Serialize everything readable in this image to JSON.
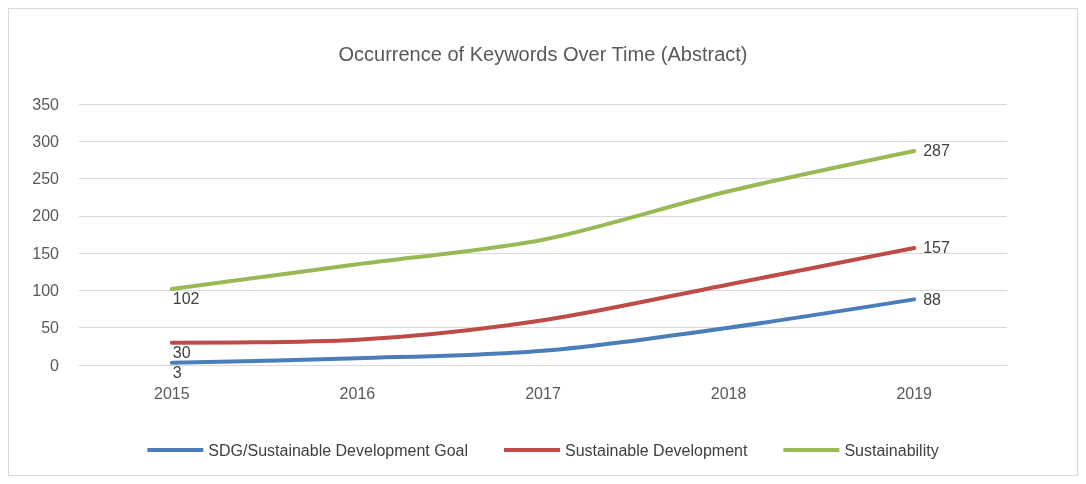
{
  "chart_data": {
    "type": "line",
    "title": "Occurrence of Keywords Over Time (Abstract)",
    "categories": [
      "2015",
      "2016",
      "2017",
      "2018",
      "2019"
    ],
    "series": [
      {
        "name": "SDG/Sustainable Development Goal",
        "color": "#4a7ebb",
        "values": [
          3,
          9,
          19,
          50,
          88
        ],
        "value_labels": [
          "3",
          null,
          null,
          null,
          "88"
        ]
      },
      {
        "name": "Sustainable Development",
        "color": "#be4b48",
        "values": [
          30,
          34,
          60,
          108,
          157
        ],
        "value_labels": [
          "30",
          null,
          null,
          null,
          "157"
        ]
      },
      {
        "name": "Sustainability",
        "color": "#98b954",
        "values": [
          102,
          135,
          168,
          233,
          287
        ],
        "value_labels": [
          "102",
          null,
          null,
          null,
          "287"
        ]
      }
    ],
    "ylim": [
      0,
      350
    ],
    "yticks": [
      0,
      50,
      100,
      150,
      200,
      250,
      300,
      350
    ],
    "grid": "y",
    "legend": "bottom",
    "marker": "none",
    "line_style": "solid"
  }
}
